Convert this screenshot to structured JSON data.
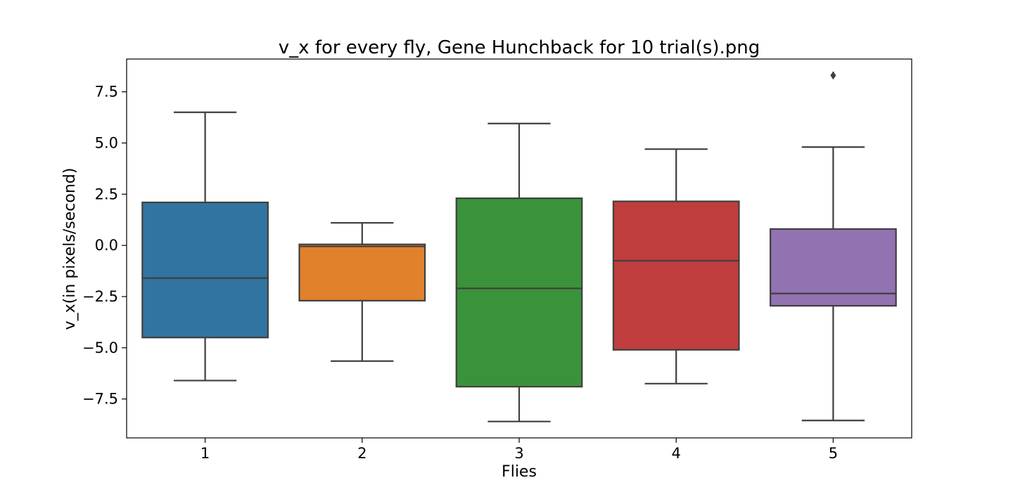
{
  "chart_data": {
    "type": "box",
    "title": "v_x for every fly, Gene Hunchback for 10 trial(s).png",
    "xlabel": "Flies",
    "ylabel": "v_x(in pixels/second)",
    "ylim": [
      -9.4,
      9.1
    ],
    "yticks": [
      -7.5,
      -5.0,
      -2.5,
      0.0,
      2.5,
      5.0,
      7.5
    ],
    "ytick_labels": [
      "−7.5",
      "−5.0",
      "−2.5",
      "0.0",
      "2.5",
      "5.0",
      "7.5"
    ],
    "categories": [
      "1",
      "2",
      "3",
      "4",
      "5"
    ],
    "boxes": [
      {
        "category": "1",
        "whisker_low": -6.6,
        "q1": -4.5,
        "median": -1.6,
        "q3": 2.1,
        "whisker_high": 6.5,
        "outliers": [],
        "color": "#3274a1"
      },
      {
        "category": "2",
        "whisker_low": -5.65,
        "q1": -2.7,
        "median": -0.05,
        "q3": 0.05,
        "whisker_high": 1.1,
        "outliers": [],
        "color": "#e1812c"
      },
      {
        "category": "3",
        "whisker_low": -8.6,
        "q1": -6.9,
        "median": -2.1,
        "q3": 2.3,
        "whisker_high": 5.95,
        "outliers": [],
        "color": "#3a923a"
      },
      {
        "category": "4",
        "whisker_low": -6.75,
        "q1": -5.1,
        "median": -0.75,
        "q3": 2.15,
        "whisker_high": 4.7,
        "outliers": [],
        "color": "#c03d3e"
      },
      {
        "category": "5",
        "whisker_low": -8.55,
        "q1": -2.95,
        "median": -2.35,
        "q3": 0.8,
        "whisker_high": 4.8,
        "outliers": [
          8.3
        ],
        "color": "#9372b2"
      }
    ],
    "grid": false,
    "legend": "none"
  }
}
